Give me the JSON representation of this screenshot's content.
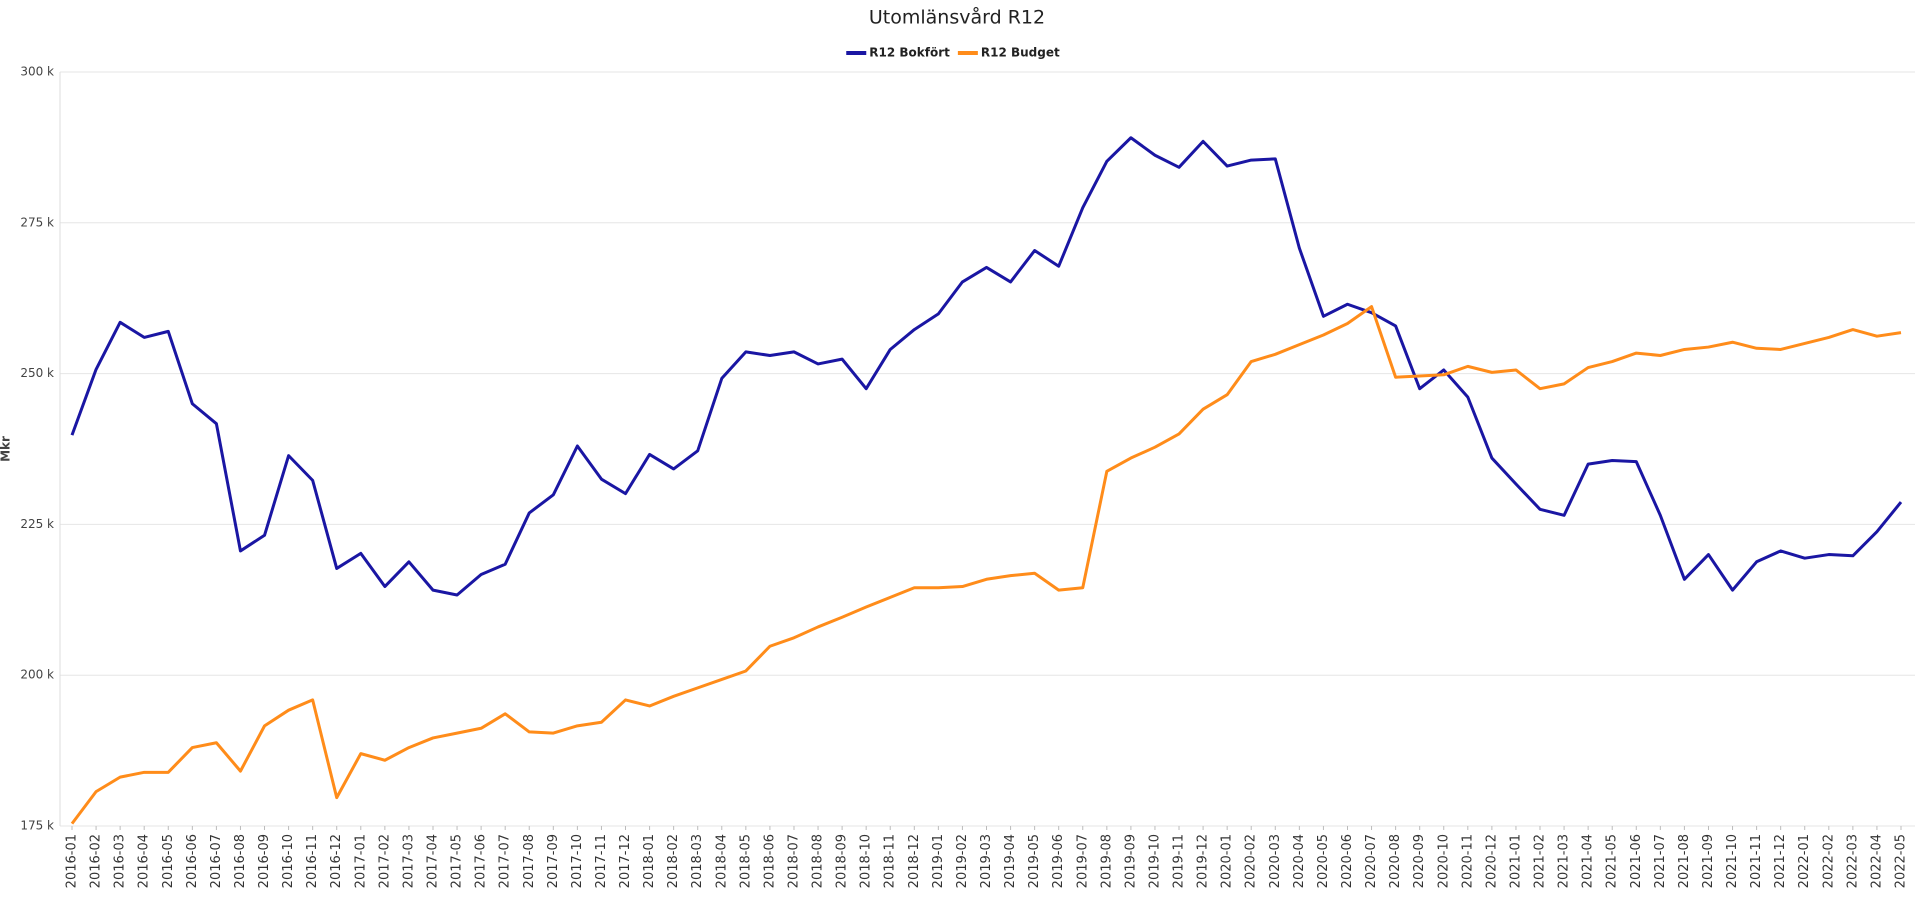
{
  "chart_data": {
    "type": "line",
    "title": "Utomlänsvård R12",
    "y_label": "Mkr",
    "categories": [
      "2016-01",
      "2016-02",
      "2016-03",
      "2016-04",
      "2016-05",
      "2016-06",
      "2016-07",
      "2016-08",
      "2016-09",
      "2016-10",
      "2016-11",
      "2016-12",
      "2017-01",
      "2017-02",
      "2017-03",
      "2017-04",
      "2017-05",
      "2017-06",
      "2017-07",
      "2017-08",
      "2017-09",
      "2017-10",
      "2017-11",
      "2017-12",
      "2018-01",
      "2018-02",
      "2018-03",
      "2018-04",
      "2018-05",
      "2018-06",
      "2018-07",
      "2018-08",
      "2018-09",
      "2018-10",
      "2018-11",
      "2018-12",
      "2019-01",
      "2019-02",
      "2019-03",
      "2019-04",
      "2019-05",
      "2019-06",
      "2019-07",
      "2019-08",
      "2019-09",
      "2019-10",
      "2019-11",
      "2019-12",
      "2020-01",
      "2020-02",
      "2020-03",
      "2020-04",
      "2020-05",
      "2020-06",
      "2020-07",
      "2020-08",
      "2020-09",
      "2020-10",
      "2020-11",
      "2020-12",
      "2021-01",
      "2021-02",
      "2021-03",
      "2021-04",
      "2021-05",
      "2021-06",
      "2021-07",
      "2021-08",
      "2021-09",
      "2021-10",
      "2021-11",
      "2021-12",
      "2022-01",
      "2022-02",
      "2022-03",
      "2022-04",
      "2022-05"
    ],
    "series": [
      {
        "name": "R12 Bokfört",
        "color": "#1a16a3",
        "values": [
          239800,
          250700,
          258500,
          256000,
          257000,
          245000,
          241700,
          220600,
          223200,
          236400,
          232300,
          217700,
          220200,
          214700,
          218800,
          214100,
          213300,
          216700,
          218400,
          226900,
          229900,
          238000,
          232500,
          230100,
          236600,
          234200,
          237200,
          249200,
          253600,
          253000,
          253600,
          251600,
          252400,
          247500,
          254000,
          257300,
          259900,
          265200,
          267600,
          265200,
          270400,
          267800,
          277500,
          285200,
          289100,
          286200,
          284200,
          288500,
          284400,
          285400,
          285600,
          270800,
          259500,
          261500,
          260100,
          257900,
          247500,
          250600,
          246100,
          236000,
          231700,
          227500,
          226500,
          235000,
          235600,
          235400,
          226500,
          215900,
          220000,
          214100,
          218800,
          220600,
          219400,
          220000,
          219800,
          223800,
          228700
        ]
      },
      {
        "name": "R12 Budget",
        "color": "#ff8c1a",
        "values": [
          175400,
          180700,
          183100,
          183900,
          183900,
          188000,
          188800,
          184100,
          191600,
          194200,
          195900,
          179700,
          187000,
          185900,
          188000,
          189600,
          190400,
          191200,
          193600,
          190600,
          190400,
          191600,
          192200,
          195900,
          194900,
          196500,
          197900,
          199300,
          200700,
          204800,
          206200,
          208000,
          209600,
          211300,
          212900,
          214500,
          214500,
          214700,
          215900,
          216500,
          216900,
          214100,
          214500,
          233800,
          236000,
          237800,
          240000,
          244100,
          246500,
          252000,
          253200,
          254800,
          256400,
          258300,
          261100,
          249400,
          249600,
          249800,
          251200,
          250200,
          250600,
          247500,
          248300,
          251000,
          252000,
          253400,
          253000,
          254000,
          254400,
          255200,
          254200,
          254000,
          255000,
          256000,
          257300,
          256200,
          256800
        ]
      }
    ],
    "ylim": [
      175000,
      300000
    ],
    "yticks": [
      {
        "value": 175000,
        "label": "175 k"
      },
      {
        "value": 200000,
        "label": "200 k"
      },
      {
        "value": 225000,
        "label": "225 k"
      },
      {
        "value": 250000,
        "label": "250 k"
      },
      {
        "value": 275000,
        "label": "275 k"
      },
      {
        "value": 300000,
        "label": "300 k"
      }
    ],
    "grid": true,
    "legend": "top"
  }
}
